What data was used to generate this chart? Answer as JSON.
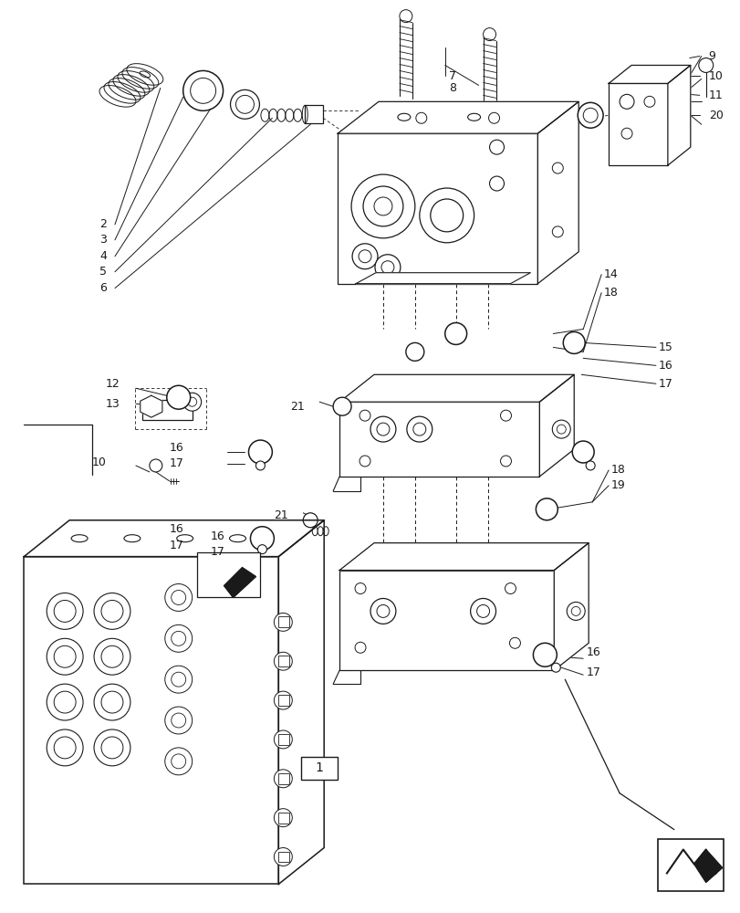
{
  "background_color": "#ffffff",
  "fig_width": 8.12,
  "fig_height": 10.0,
  "dpi": 100,
  "line_color": "#1a1a1a",
  "lw_thin": 0.6,
  "lw_med": 0.9,
  "lw_thick": 1.1
}
